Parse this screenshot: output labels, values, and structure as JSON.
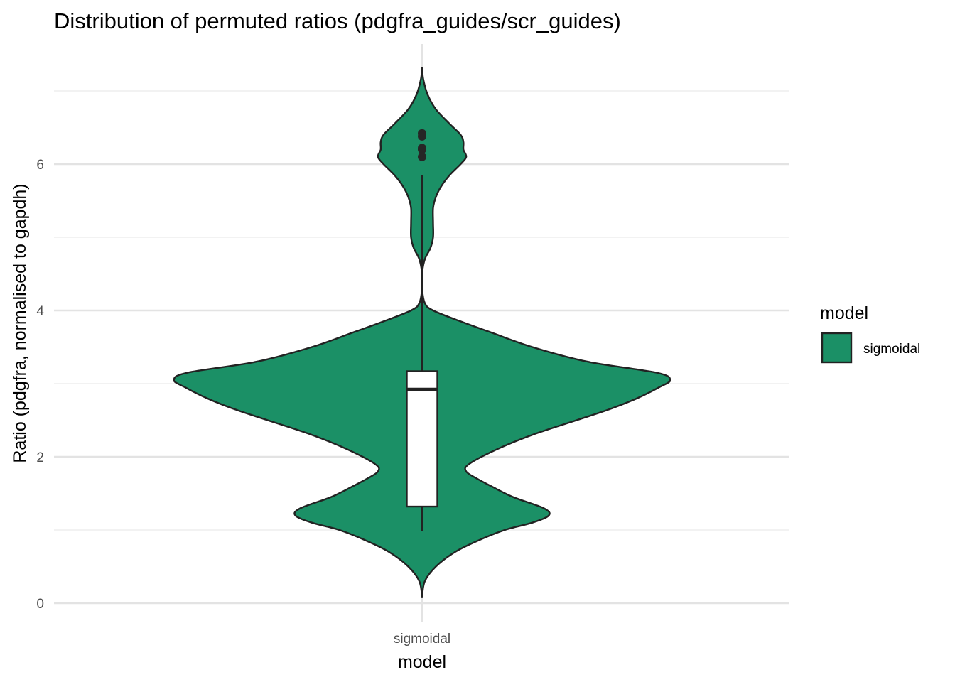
{
  "chart_data": {
    "type": "violin",
    "title": "Distribution of permuted ratios (pdgfra_guides/scr_guides)",
    "xlabel": "model",
    "ylabel": "Ratio (pdgfra, normalised to gapdh)",
    "categories": [
      "sigmoidal"
    ],
    "ylim": [
      -0.15,
      7.5
    ],
    "y_ticks": [
      0,
      2,
      4,
      6
    ],
    "y_minor_ticks": [
      1,
      3,
      5,
      7
    ],
    "grid": true,
    "legend": {
      "title": "model",
      "position": "right",
      "entries": [
        "sigmoidal"
      ]
    },
    "fill_color": "#1b9066",
    "outline_color": "#222222",
    "density": {
      "y": [
        0.08,
        0.3,
        0.5,
        0.7,
        0.85,
        1.0,
        1.1,
        1.2,
        1.3,
        1.45,
        1.6,
        1.7,
        1.8,
        1.9,
        2.1,
        2.3,
        2.5,
        2.65,
        2.8,
        2.95,
        3.05,
        3.15,
        3.3,
        3.5,
        3.7,
        3.85,
        4.0,
        4.1,
        4.3,
        4.5,
        4.7,
        4.85,
        5.0,
        5.2,
        5.4,
        5.55,
        5.7,
        5.85,
        6.0,
        6.1,
        6.2,
        6.3,
        6.4,
        6.55,
        6.75,
        6.95,
        7.15,
        7.3
      ],
      "width": [
        0.0,
        0.01,
        0.05,
        0.12,
        0.2,
        0.3,
        0.4,
        0.46,
        0.44,
        0.33,
        0.25,
        0.2,
        0.16,
        0.17,
        0.27,
        0.4,
        0.56,
        0.68,
        0.78,
        0.86,
        0.9,
        0.85,
        0.6,
        0.4,
        0.25,
        0.14,
        0.04,
        0.01,
        0.0,
        0.0,
        0.01,
        0.03,
        0.04,
        0.04,
        0.04,
        0.05,
        0.07,
        0.1,
        0.14,
        0.16,
        0.15,
        0.15,
        0.14,
        0.1,
        0.05,
        0.02,
        0.005,
        0.0
      ]
    },
    "boxplot": {
      "lower_whisker": 0.99,
      "q1": 1.32,
      "median": 2.92,
      "q3": 3.17,
      "upper_whisker": 5.85
    },
    "outliers": [
      6.1,
      6.2,
      6.22,
      6.38,
      6.42
    ]
  }
}
